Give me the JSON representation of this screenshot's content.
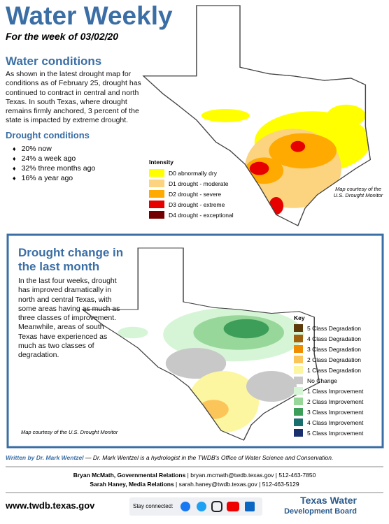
{
  "header": {
    "title": "Water Weekly",
    "subtitle": "For the week of 03/02/20"
  },
  "water_conditions": {
    "heading": "Water conditions",
    "body": "As shown in the latest drought map for conditions as of February 25, drought has continued to contract in central and north Texas. In south Texas, where drought remains firmly anchored, 3 percent of the state is impacted by extreme drought.",
    "drought_heading": "Drought conditions",
    "bullets": [
      "20% now",
      "24% a week ago",
      "32% three months ago",
      "16% a year ago"
    ]
  },
  "intensity": {
    "title": "Intensity",
    "items": [
      {
        "label": "D0 abnormally dry",
        "color": "#ffff00"
      },
      {
        "label": "D1 drought - moderate",
        "color": "#fcd37f"
      },
      {
        "label": "D2 drought - severe",
        "color": "#ffaa00"
      },
      {
        "label": "D3 drought - extreme",
        "color": "#e60000"
      },
      {
        "label": "D4 drought - exceptional",
        "color": "#730000"
      }
    ],
    "credit": "Map courtesy of the U.S. Drought Monitor"
  },
  "change": {
    "heading": "Drought change in the last month",
    "body": "In the last four weeks, drought has improved dramatically in north and central Texas, with some areas having as much as three classes of improvement. Meanwhile, areas of south Texas have experienced as much as two classes of degradation.",
    "key_title": "Key",
    "items": [
      {
        "label": "5 Class Degradation",
        "color": "#5c3a0a"
      },
      {
        "label": "4 Class Degradation",
        "color": "#a0620f"
      },
      {
        "label": "3 Class Degradation",
        "color": "#f08c00"
      },
      {
        "label": "2 Class Degradation",
        "color": "#fcc55a"
      },
      {
        "label": "1 Class Degradation",
        "color": "#fdf6a0"
      },
      {
        "label": "No Change",
        "color": "#c8c8c8"
      },
      {
        "label": "1 Class Improvement",
        "color": "#d6f5d6"
      },
      {
        "label": "2 Class Improvement",
        "color": "#98d79a"
      },
      {
        "label": "3 Class Improvement",
        "color": "#3d9e5a"
      },
      {
        "label": "4 Class Improvement",
        "color": "#1a6e6e"
      },
      {
        "label": "5 Class Improvement",
        "color": "#1a2f6e"
      }
    ],
    "credit": "Map courtesy of the U.S. Drought Monitor"
  },
  "byline": {
    "author": "Written by Dr. Mark Wentzel",
    "note": "— Dr. Mark Wentzel is a hydrologist in the TWDB's Office of Water Science and Conservation."
  },
  "contacts": [
    {
      "name": "Bryan McMath, Governmental Relations",
      "email": "bryan.mcmath@twdb.texas.gov",
      "phone": "512-463-7850"
    },
    {
      "name": "Sarah Haney, Media Relations",
      "email": "sarah.haney@twdb.texas.gov",
      "phone": "512-463-5129"
    }
  ],
  "footer": {
    "url": "www.twdb.texas.gov",
    "social": "Stay connected:",
    "logo_top": "Texas Water",
    "logo_bottom": "Development Board"
  }
}
